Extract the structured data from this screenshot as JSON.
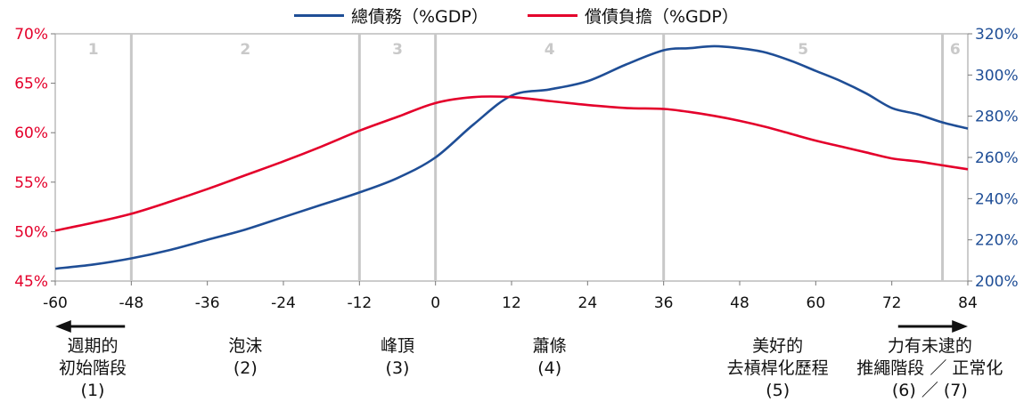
{
  "chart_data": {
    "type": "line",
    "legend": [
      {
        "name": "總債務（%GDP）",
        "color": "#1f4e96"
      },
      {
        "name": "償債負擔（%GDP）",
        "color": "#e4002b"
      }
    ],
    "x_ticks": [
      "-60",
      "-48",
      "-36",
      "-24",
      "-12",
      "0",
      "12",
      "24",
      "36",
      "48",
      "60",
      "72",
      "84"
    ],
    "xlim": [
      -60,
      84
    ],
    "y_left": {
      "ticks": [
        "45%",
        "50%",
        "55%",
        "60%",
        "65%",
        "70%"
      ],
      "lim": [
        45,
        70
      ],
      "color": "#e4002b"
    },
    "y_right": {
      "ticks": [
        "200%",
        "220%",
        "240%",
        "260%",
        "280%",
        "300%",
        "320%"
      ],
      "lim": [
        200,
        320
      ],
      "color": "#1f4e96"
    },
    "phase_boundaries": [
      -48,
      -12,
      0,
      36,
      80
    ],
    "phase_numbers": [
      {
        "label": "1",
        "x": -54
      },
      {
        "label": "2",
        "x": -30
      },
      {
        "label": "3",
        "x": -6
      },
      {
        "label": "4",
        "x": 18
      },
      {
        "label": "5",
        "x": 58
      },
      {
        "label": "6",
        "x": 82
      }
    ],
    "series": [
      {
        "name": "總債務（%GDP）",
        "axis": "right",
        "color": "#1f4e96",
        "x": [
          -60,
          -54,
          -48,
          -42,
          -36,
          -30,
          -24,
          -18,
          -12,
          -6,
          0,
          6,
          12,
          18,
          24,
          30,
          36,
          40,
          44,
          48,
          52,
          56,
          60,
          64,
          68,
          72,
          76,
          80,
          84
        ],
        "y": [
          206,
          208,
          211,
          215,
          220,
          225,
          231,
          237,
          243,
          250,
          260,
          276,
          290,
          293,
          297,
          305,
          312,
          313,
          314,
          313,
          311,
          307,
          302,
          297,
          291,
          284,
          281,
          277,
          274
        ]
      },
      {
        "name": "償債負擔（%GDP）",
        "axis": "left",
        "color": "#e4002b",
        "x": [
          -60,
          -54,
          -48,
          -42,
          -36,
          -30,
          -24,
          -18,
          -12,
          -6,
          0,
          6,
          12,
          18,
          24,
          30,
          36,
          40,
          44,
          48,
          52,
          56,
          60,
          64,
          68,
          72,
          76,
          80,
          84
        ],
        "y": [
          50.1,
          50.9,
          51.8,
          53.0,
          54.3,
          55.7,
          57.1,
          58.6,
          60.2,
          61.6,
          63.0,
          63.6,
          63.6,
          63.2,
          62.8,
          62.5,
          62.4,
          62.1,
          61.7,
          61.2,
          60.6,
          59.9,
          59.2,
          58.6,
          58.0,
          57.4,
          57.1,
          56.7,
          56.3
        ]
      }
    ]
  },
  "phases": [
    {
      "label": "週期的\n初始階段\n(1)",
      "x": -60
    },
    {
      "label": "泡沫\n(2)",
      "x": -30
    },
    {
      "label": "峰頂\n(3)",
      "x": -6
    },
    {
      "label": "蕭條\n(4)",
      "x": 18
    },
    {
      "label": "美好的\n去槓桿化歷程\n(5)",
      "x": 54
    },
    {
      "label": "力有未逮的\n推繩階段 ／ 正常化\n(6)  ／  (7)",
      "x": 78
    }
  ],
  "arrows": {
    "left_color": "#111111",
    "right_color": "#111111"
  }
}
